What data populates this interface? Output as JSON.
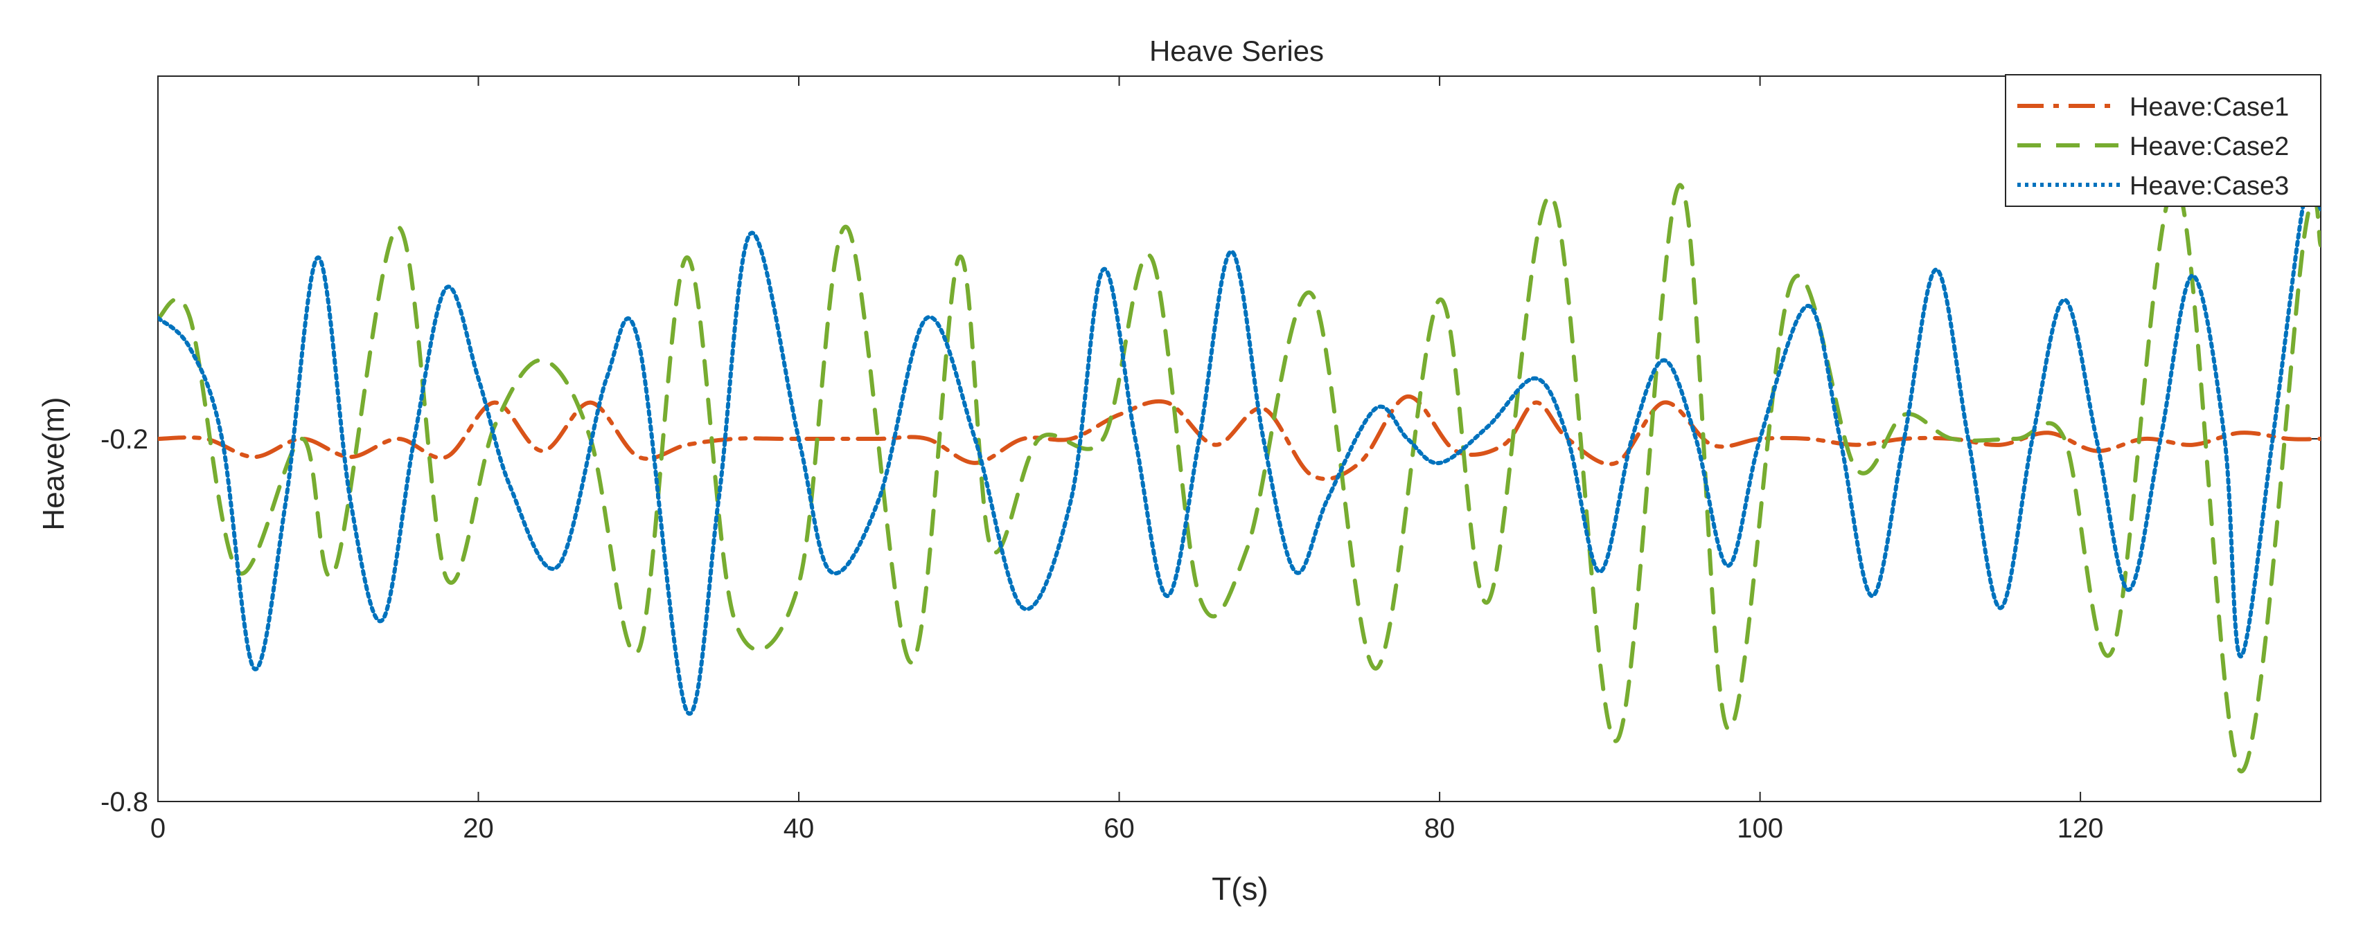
{
  "chart_data": {
    "type": "line",
    "title": "Heave Series",
    "xlabel": "T(s)",
    "ylabel": "Heave(m)",
    "xlim": [
      0,
      135
    ],
    "ylim": [
      -0.8,
      0.4
    ],
    "xticks": [
      0,
      20,
      40,
      60,
      80,
      100,
      120
    ],
    "xtick_labels": [
      "0",
      "20",
      "40",
      "60",
      "80",
      "100",
      "120"
    ],
    "yticks": [
      -0.8,
      -0.2
    ],
    "ytick_labels": [
      "-0.8",
      "-0.2"
    ],
    "grid": false,
    "legend_position": "top-right",
    "series": [
      {
        "name": "Heave:Case1",
        "color": "#D95319",
        "dash": "dash-dot",
        "points": [
          [
            0,
            -0.2
          ],
          [
            3,
            -0.2
          ],
          [
            6,
            -0.23
          ],
          [
            9,
            -0.2
          ],
          [
            12,
            -0.23
          ],
          [
            15,
            -0.2
          ],
          [
            18,
            -0.23
          ],
          [
            21,
            -0.14
          ],
          [
            24,
            -0.22
          ],
          [
            27,
            -0.14
          ],
          [
            30,
            -0.23
          ],
          [
            33,
            -0.21
          ],
          [
            36,
            -0.2
          ],
          [
            39,
            -0.2
          ],
          [
            42,
            -0.2
          ],
          [
            45,
            -0.2
          ],
          [
            48,
            -0.2
          ],
          [
            51,
            -0.24
          ],
          [
            54,
            -0.2
          ],
          [
            57,
            -0.2
          ],
          [
            60,
            -0.16
          ],
          [
            63,
            -0.14
          ],
          [
            66,
            -0.21
          ],
          [
            69,
            -0.15
          ],
          [
            72,
            -0.26
          ],
          [
            75,
            -0.24
          ],
          [
            78,
            -0.13
          ],
          [
            81,
            -0.22
          ],
          [
            84,
            -0.21
          ],
          [
            86,
            -0.14
          ],
          [
            88,
            -0.2
          ],
          [
            91,
            -0.24
          ],
          [
            94,
            -0.14
          ],
          [
            97,
            -0.21
          ],
          [
            100,
            -0.2
          ],
          [
            103,
            -0.2
          ],
          [
            106,
            -0.21
          ],
          [
            109,
            -0.2
          ],
          [
            112,
            -0.2
          ],
          [
            115,
            -0.21
          ],
          [
            118,
            -0.19
          ],
          [
            121,
            -0.22
          ],
          [
            124,
            -0.2
          ],
          [
            127,
            -0.21
          ],
          [
            130,
            -0.19
          ],
          [
            133,
            -0.2
          ],
          [
            135,
            -0.2
          ]
        ]
      },
      {
        "name": "Heave:Case2",
        "color": "#77AC30",
        "dash": "dashed",
        "points": [
          [
            0,
            0.0
          ],
          [
            2,
            0.0
          ],
          [
            5,
            -0.42
          ],
          [
            9,
            -0.2
          ],
          [
            11,
            -0.42
          ],
          [
            15,
            0.15
          ],
          [
            18,
            -0.43
          ],
          [
            21,
            -0.18
          ],
          [
            24,
            -0.07
          ],
          [
            27,
            -0.2
          ],
          [
            30,
            -0.55
          ],
          [
            33,
            0.1
          ],
          [
            36,
            -0.5
          ],
          [
            40,
            -0.44
          ],
          [
            43,
            0.15
          ],
          [
            47,
            -0.57
          ],
          [
            50,
            0.1
          ],
          [
            52,
            -0.38
          ],
          [
            55,
            -0.2
          ],
          [
            59,
            -0.2
          ],
          [
            62,
            0.1
          ],
          [
            65,
            -0.46
          ],
          [
            68,
            -0.38
          ],
          [
            72,
            0.04
          ],
          [
            76,
            -0.58
          ],
          [
            80,
            0.03
          ],
          [
            83,
            -0.47
          ],
          [
            87,
            0.2
          ],
          [
            91,
            -0.7
          ],
          [
            95,
            0.22
          ],
          [
            98,
            -0.68
          ],
          [
            102,
            0.06
          ],
          [
            106,
            -0.25
          ],
          [
            109,
            -0.16
          ],
          [
            112,
            -0.2
          ],
          [
            116,
            -0.2
          ],
          [
            119,
            -0.2
          ],
          [
            122,
            -0.55
          ],
          [
            126,
            0.22
          ],
          [
            130,
            -0.75
          ],
          [
            134,
            0.14
          ],
          [
            135,
            0.12
          ]
        ]
      },
      {
        "name": "Heave:Case3",
        "color": "#0072BD",
        "dash": "dotted",
        "points": [
          [
            0,
            0.0
          ],
          [
            2,
            -0.05
          ],
          [
            4,
            -0.2
          ],
          [
            6,
            -0.58
          ],
          [
            8,
            -0.3
          ],
          [
            10,
            0.1
          ],
          [
            12,
            -0.3
          ],
          [
            14,
            -0.5
          ],
          [
            16,
            -0.2
          ],
          [
            18,
            0.05
          ],
          [
            20,
            -0.1
          ],
          [
            22,
            -0.28
          ],
          [
            25,
            -0.41
          ],
          [
            28,
            -0.1
          ],
          [
            30,
            -0.04
          ],
          [
            33,
            -0.65
          ],
          [
            35,
            -0.3
          ],
          [
            37,
            0.14
          ],
          [
            40,
            -0.2
          ],
          [
            42,
            -0.42
          ],
          [
            45,
            -0.3
          ],
          [
            48,
            0.0
          ],
          [
            51,
            -0.2
          ],
          [
            54,
            -0.48
          ],
          [
            57,
            -0.3
          ],
          [
            59,
            0.08
          ],
          [
            61,
            -0.2
          ],
          [
            63,
            -0.46
          ],
          [
            65,
            -0.2
          ],
          [
            67,
            0.11
          ],
          [
            69,
            -0.2
          ],
          [
            71,
            -0.42
          ],
          [
            73,
            -0.3
          ],
          [
            76,
            -0.15
          ],
          [
            78,
            -0.2
          ],
          [
            80,
            -0.24
          ],
          [
            83,
            -0.18
          ],
          [
            86,
            -0.1
          ],
          [
            88,
            -0.2
          ],
          [
            90,
            -0.42
          ],
          [
            92,
            -0.2
          ],
          [
            94,
            -0.07
          ],
          [
            96,
            -0.2
          ],
          [
            98,
            -0.41
          ],
          [
            100,
            -0.2
          ],
          [
            103,
            0.02
          ],
          [
            105,
            -0.2
          ],
          [
            107,
            -0.46
          ],
          [
            109,
            -0.2
          ],
          [
            111,
            0.08
          ],
          [
            113,
            -0.2
          ],
          [
            115,
            -0.48
          ],
          [
            117,
            -0.2
          ],
          [
            119,
            0.03
          ],
          [
            121,
            -0.2
          ],
          [
            123,
            -0.45
          ],
          [
            125,
            -0.2
          ],
          [
            127,
            0.07
          ],
          [
            129,
            -0.2
          ],
          [
            130,
            -0.56
          ],
          [
            132,
            -0.2
          ],
          [
            134,
            0.2
          ],
          [
            135,
            0.18
          ]
        ]
      }
    ]
  }
}
